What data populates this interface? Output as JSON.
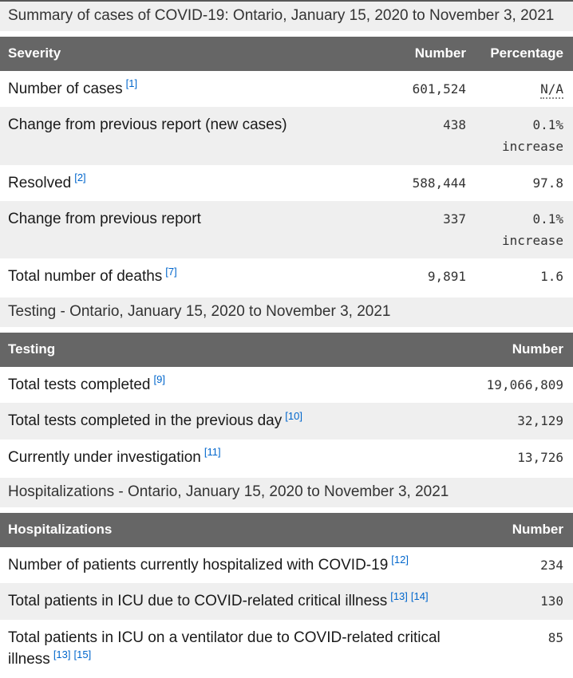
{
  "colors": {
    "table_header_bg": "#666666",
    "table_header_text": "#ffffff",
    "row_alt_bg": "#efefef",
    "section_heading_bg": "#efefef",
    "footnote_link_blue": "#0066cc",
    "body_text": "#1a1a1a"
  },
  "sections": [
    {
      "heading": "Summary of cases of COVID-19: Ontario, January 15, 2020 to November 3, 2021",
      "table": {
        "headers": [
          "Severity",
          "Number",
          "Percentage"
        ],
        "rows": [
          {
            "label": "Number of cases",
            "footnotes": [
              "[1]"
            ],
            "number": "601,524",
            "percentage": "N/A",
            "percentage_abbr": true
          },
          {
            "label": "Change from previous report (new cases)",
            "footnotes": [],
            "number": "438",
            "percentage": "0.1%",
            "percentage_note": "increase"
          },
          {
            "label": "Resolved",
            "footnotes": [
              "[2]"
            ],
            "number": "588,444",
            "percentage": "97.8"
          },
          {
            "label": "Change from previous report",
            "footnotes": [],
            "number": "337",
            "percentage": "0.1%",
            "percentage_note": "increase"
          },
          {
            "label": "Total number of deaths",
            "footnotes": [
              "[7]"
            ],
            "number": "9,891",
            "percentage": "1.6"
          }
        ]
      }
    },
    {
      "heading": "Testing - Ontario, January 15, 2020 to November 3, 2021",
      "table": {
        "headers": [
          "Testing",
          "Number"
        ],
        "rows": [
          {
            "label": "Total tests completed",
            "footnotes": [
              "[9]"
            ],
            "number": "19,066,809"
          },
          {
            "label": "Total tests completed in the previous day",
            "footnotes": [
              "[10]"
            ],
            "number": "32,129"
          },
          {
            "label": "Currently under investigation",
            "footnotes": [
              "[11]"
            ],
            "number": "13,726"
          }
        ]
      }
    },
    {
      "heading": "Hospitalizations - Ontario, January 15, 2020 to November 3, 2021",
      "table": {
        "headers": [
          "Hospitalizations",
          "Number"
        ],
        "rows": [
          {
            "label": "Number of patients currently hospitalized with COVID-19",
            "footnotes": [
              "[12]"
            ],
            "number": "234"
          },
          {
            "label": "Total patients in ICU due to COVID-related critical illness",
            "footnotes": [
              "[13]",
              "[14]"
            ],
            "number": "130"
          },
          {
            "label": "Total patients in ICU on a ventilator due to COVID-related critical illness",
            "footnotes": [
              "[13]",
              "[15]"
            ],
            "number": "85"
          }
        ]
      }
    }
  ]
}
